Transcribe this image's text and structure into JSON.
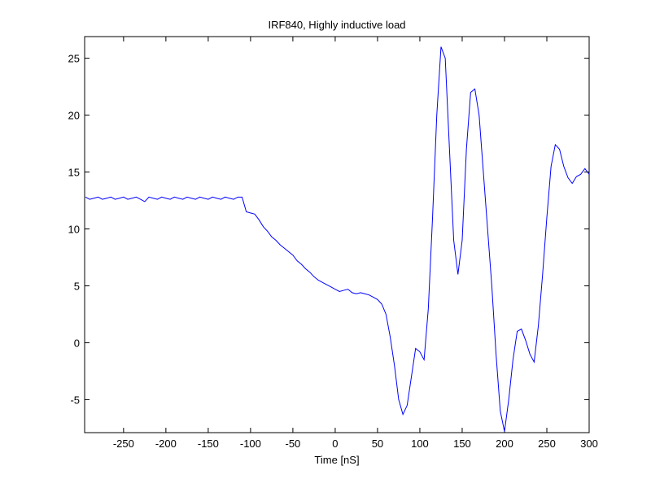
{
  "chart_data": {
    "type": "line",
    "title": "IRF840, Highly inductive load",
    "x_label": "Time [nS]",
    "x": [
      -295,
      -290,
      -285,
      -280,
      -275,
      -270,
      -265,
      -260,
      -255,
      -250,
      -245,
      -240,
      -235,
      -230,
      -225,
      -220,
      -215,
      -210,
      -205,
      -200,
      -195,
      -190,
      -185,
      -180,
      -175,
      -170,
      -165,
      -160,
      -155,
      -150,
      -145,
      -140,
      -135,
      -130,
      -125,
      -120,
      -115,
      -110,
      -105,
      -100,
      -95,
      -90,
      -85,
      -80,
      -75,
      -70,
      -65,
      -60,
      -55,
      -50,
      -45,
      -40,
      -35,
      -30,
      -25,
      -20,
      -15,
      -10,
      -5,
      0,
      5,
      10,
      15,
      20,
      25,
      30,
      35,
      40,
      45,
      50,
      55,
      60,
      65,
      70,
      75,
      80,
      85,
      90,
      95,
      100,
      105,
      110,
      115,
      120,
      125,
      130,
      135,
      140,
      145,
      150,
      155,
      160,
      165,
      170,
      175,
      180,
      185,
      190,
      195,
      200,
      205,
      210,
      215,
      220,
      225,
      230,
      235,
      240,
      245,
      250,
      255,
      260,
      265,
      270,
      275,
      280,
      285,
      290,
      295,
      300
    ],
    "series": [
      {
        "color": "#0000ff",
        "values": [
          12.8,
          12.6,
          12.7,
          12.8,
          12.6,
          12.7,
          12.8,
          12.6,
          12.7,
          12.8,
          12.6,
          12.7,
          12.8,
          12.6,
          12.4,
          12.8,
          12.7,
          12.6,
          12.8,
          12.7,
          12.6,
          12.8,
          12.7,
          12.6,
          12.8,
          12.7,
          12.6,
          12.8,
          12.7,
          12.6,
          12.8,
          12.7,
          12.6,
          12.8,
          12.7,
          12.6,
          12.8,
          12.8,
          11.5,
          11.4,
          11.3,
          10.8,
          10.2,
          9.8,
          9.3,
          9.0,
          8.6,
          8.3,
          8.0,
          7.7,
          7.2,
          6.9,
          6.5,
          6.2,
          5.8,
          5.5,
          5.3,
          5.1,
          4.9,
          4.7,
          4.5,
          4.6,
          4.7,
          4.4,
          4.3,
          4.4,
          4.3,
          4.2,
          4.0,
          3.8,
          3.4,
          2.5,
          0.5,
          -2,
          -5,
          -6.3,
          -5.5,
          -3,
          -0.5,
          -0.8,
          -1.5,
          3,
          11,
          20,
          26,
          25,
          17,
          9,
          6,
          9,
          17,
          22,
          22.3,
          20,
          15,
          10,
          5,
          -1,
          -6,
          -7.8,
          -5,
          -1.5,
          1.0,
          1.2,
          0.2,
          -1.0,
          -1.7,
          1.5,
          6,
          11,
          15.5,
          17.4,
          17,
          15.5,
          14.5,
          14.0,
          14.6,
          14.8,
          15.3,
          14.8
        ]
      }
    ],
    "xlim": [
      -296,
      300
    ],
    "ylim": [
      -7.9,
      26.9
    ],
    "xticks": [
      -250,
      -200,
      -150,
      -100,
      -50,
      0,
      50,
      100,
      150,
      200,
      250,
      300
    ],
    "yticks": [
      -5,
      0,
      5,
      10,
      15,
      20,
      25
    ]
  }
}
